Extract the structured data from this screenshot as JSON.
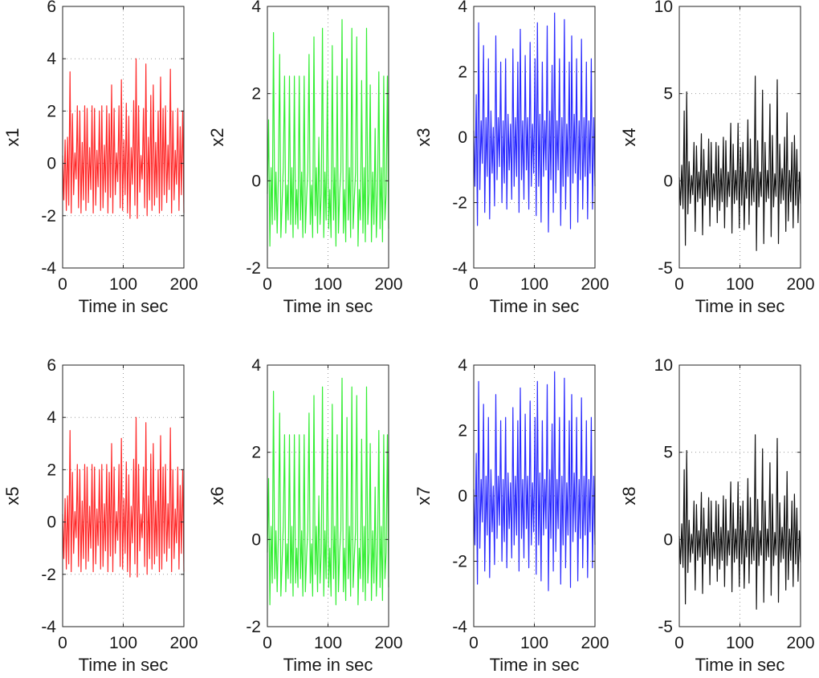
{
  "chart_data": [
    {
      "type": "line",
      "ylabel": "x1",
      "xlabel": "Time in sec",
      "color": "#ff2a2a",
      "xlim": [
        0,
        200
      ],
      "ylim": [
        -4,
        6
      ],
      "xticks": [
        0,
        100,
        200
      ],
      "xtick_labels": [
        "0",
        "100",
        "200"
      ],
      "yticks": [
        -4,
        -2,
        0,
        2,
        4,
        6
      ],
      "ytick_labels": [
        "-4",
        "-2",
        "0",
        "2",
        "4",
        "6"
      ],
      "grid": "dotted",
      "series": [
        {
          "name": "x1",
          "x_start": 0,
          "x_end": 200,
          "values": [
            0.3,
            -1.4,
            0.9,
            -1.8,
            1.0,
            -1.6,
            3.5,
            -1.9,
            1.9,
            -1.2,
            0.4,
            -0.6,
            2.2,
            -1.7,
            2.0,
            -1.9,
            0.8,
            -1.4,
            2.2,
            -1.8,
            2.1,
            -1.5,
            0.6,
            -1.0,
            2.2,
            -1.9,
            2.1,
            -1.6,
            0.5,
            -0.9,
            2.0,
            -1.8,
            2.2,
            -1.7,
            0.7,
            -1.1,
            2.2,
            -1.9,
            1.9,
            -1.3,
            3.0,
            -1.9,
            2.1,
            -1.2,
            0.4,
            -0.7,
            2.2,
            -1.7,
            3.2,
            -1.8,
            0.9,
            -1.2,
            2.3,
            -1.9,
            1.8,
            -2.1,
            0.6,
            -0.8,
            2.4,
            -1.6,
            4.0,
            -2.1,
            2.2,
            -1.1,
            0.3,
            -0.6,
            2.1,
            -1.7,
            3.8,
            -2.0,
            1.0,
            -1.4,
            2.6,
            -1.8,
            3.0,
            -1.6,
            0.8,
            -1.3,
            2.0,
            -1.9,
            3.3,
            -1.8,
            2.1,
            -1.2,
            2.2,
            -1.5,
            0.7,
            -1.0,
            3.6,
            -1.9,
            2.0,
            -1.4,
            0.5,
            -0.8,
            2.1,
            -1.8,
            1.4,
            -1.2,
            2.0,
            -1.9
          ]
        }
      ]
    },
    {
      "type": "line",
      "ylabel": "x2",
      "xlabel": "Time in sec",
      "color": "#33ee33",
      "xlim": [
        0,
        200
      ],
      "ylim": [
        -2,
        4
      ],
      "xticks": [
        0,
        100,
        200
      ],
      "xtick_labels": [
        "0",
        "100",
        "200"
      ],
      "yticks": [
        -2,
        0,
        2,
        4
      ],
      "ytick_labels": [
        "-2",
        "0",
        "2",
        "4"
      ],
      "grid": "dotted",
      "series": [
        {
          "name": "x2",
          "x_start": 0,
          "x_end": 200,
          "values": [
            -0.3,
            1.4,
            -1.5,
            0.3,
            -1.0,
            3.4,
            -0.9,
            0.2,
            -1.2,
            0.1,
            2.9,
            -1.3,
            -0.5,
            0.3,
            2.4,
            -1.2,
            -0.1,
            -0.9,
            2.4,
            -1.0,
            0.3,
            -1.3,
            2.4,
            -1.0,
            -0.2,
            -1.1,
            2.4,
            -0.9,
            0.2,
            -1.3,
            2.4,
            -1.2,
            -0.4,
            0.2,
            2.9,
            -1.0,
            -0.1,
            -1.3,
            3.3,
            -0.8,
            0.3,
            -1.2,
            1.0,
            -1.0,
            -0.3,
            3.5,
            -1.3,
            0.2,
            -0.9,
            2.3,
            -1.1,
            -0.2,
            -1.3,
            3.1,
            -0.9,
            0.3,
            -1.5,
            2.4,
            -1.2,
            -0.3,
            0.2,
            3.7,
            -1.2,
            -0.2,
            -1.4,
            2.8,
            -0.9,
            0.3,
            -1.3,
            3.5,
            -1.1,
            -0.4,
            0.2,
            3.3,
            -1.5,
            -0.2,
            -0.9,
            2.3,
            -1.2,
            0.3,
            -1.4,
            3.5,
            -1.0,
            -0.3,
            2.2,
            -1.4,
            0.2,
            -1.0,
            1.2,
            -1.3,
            -0.2,
            2.5,
            -1.1,
            0.3,
            -1.4,
            2.4,
            -0.9,
            -0.3,
            2.4,
            -1.1
          ]
        }
      ]
    },
    {
      "type": "line",
      "ylabel": "x3",
      "xlabel": "Time in sec",
      "color": "#2a2aff",
      "xlim": [
        0,
        200
      ],
      "ylim": [
        -4,
        4
      ],
      "xticks": [
        0,
        100,
        200
      ],
      "xtick_labels": [
        "0",
        "100",
        "200"
      ],
      "yticks": [
        -4,
        -2,
        0,
        2,
        4
      ],
      "ytick_labels": [
        "-4",
        "-2",
        "0",
        "2",
        "4"
      ],
      "grid": "dotted",
      "series": [
        {
          "name": "x3",
          "x_start": 0,
          "x_end": 200,
          "values": [
            0.2,
            -1.5,
            1.3,
            -2.7,
            3.5,
            -1.6,
            0.5,
            -0.8,
            2.8,
            -2.3,
            0.6,
            -1.2,
            2.4,
            -2.5,
            0.8,
            -1.1,
            0.3,
            -2.1,
            3.1,
            -1.3,
            0.6,
            -0.9,
            2.3,
            -2.0,
            0.5,
            -1.4,
            2.4,
            -2.2,
            0.7,
            -1.0,
            0.4,
            -1.9,
            2.7,
            -1.5,
            0.6,
            -1.2,
            2.3,
            -2.3,
            3.3,
            -1.3,
            0.5,
            -1.9,
            2.5,
            -1.0,
            0.6,
            -2.2,
            2.9,
            -1.5,
            0.4,
            -1.1,
            2.4,
            -2.4,
            3.5,
            -1.5,
            0.7,
            -2.6,
            2.3,
            -1.2,
            0.5,
            -1.0,
            3.4,
            -2.9,
            0.8,
            -1.3,
            2.2,
            -2.3,
            3.8,
            -1.7,
            0.5,
            -1.0,
            2.4,
            -2.7,
            0.6,
            -1.5,
            3.6,
            -2.2,
            0.4,
            -1.2,
            2.3,
            -2.8,
            3.1,
            -1.4,
            0.7,
            -1.1,
            2.4,
            -2.6,
            0.5,
            -1.3,
            3.0,
            -2.2,
            0.6,
            -1.2,
            2.3,
            -2.5,
            0.5,
            -1.1,
            2.4,
            -2.2,
            0.6,
            -1.5
          ]
        }
      ]
    },
    {
      "type": "line",
      "ylabel": "x4",
      "xlabel": "Time in sec",
      "color": "#111111",
      "xlim": [
        0,
        200
      ],
      "ylim": [
        -5,
        10
      ],
      "xticks": [
        0,
        100,
        200
      ],
      "xtick_labels": [
        "0",
        "100",
        "200"
      ],
      "yticks": [
        -5,
        0,
        5,
        10
      ],
      "ytick_labels": [
        "-5",
        "0",
        "5",
        "10"
      ],
      "grid": "dotted",
      "series": [
        {
          "name": "x4",
          "x_start": 0,
          "x_end": 200,
          "values": [
            0.2,
            -1.4,
            0.9,
            -1.6,
            4.0,
            -3.7,
            5.1,
            -1.9,
            1.1,
            -1.3,
            0.3,
            -0.8,
            2.2,
            -2.9,
            2.0,
            -1.2,
            0.5,
            -1.0,
            2.7,
            -3.1,
            1.8,
            -1.4,
            0.6,
            -0.9,
            2.4,
            -2.6,
            2.2,
            -1.5,
            0.4,
            -1.1,
            2.2,
            -2.4,
            2.0,
            -1.7,
            0.7,
            -1.2,
            2.5,
            -2.7,
            2.3,
            -1.5,
            0.5,
            -0.9,
            3.3,
            -3.0,
            2.1,
            -1.3,
            0.6,
            -1.1,
            3.3,
            -2.7,
            1.9,
            -1.4,
            2.2,
            -2.8,
            0.5,
            -1.0,
            3.5,
            -2.5,
            2.4,
            -1.4,
            0.7,
            -1.2,
            6.0,
            -4.0,
            2.3,
            -1.5,
            0.5,
            -0.9,
            5.2,
            -3.6,
            2.2,
            -1.2,
            0.6,
            -1.0,
            4.4,
            -3.2,
            2.6,
            -1.5,
            0.4,
            -0.9,
            5.8,
            -3.6,
            2.1,
            -1.3,
            0.7,
            -1.1,
            2.5,
            -2.9,
            3.9,
            -2.3,
            0.6,
            -1.2,
            2.2,
            -2.7,
            2.6,
            -1.4,
            1.8,
            -2.4,
            0.5,
            -1.3
          ]
        }
      ]
    },
    {
      "type": "line",
      "ylabel": "x5",
      "xlabel": "Time in sec",
      "color": "#ff2a2a",
      "xlim": [
        0,
        200
      ],
      "ylim": [
        -4,
        6
      ],
      "xticks": [
        0,
        100,
        200
      ],
      "xtick_labels": [
        "0",
        "100",
        "200"
      ],
      "yticks": [
        -4,
        -2,
        0,
        2,
        4,
        6
      ],
      "ytick_labels": [
        "-4",
        "-2",
        "0",
        "2",
        "4",
        "6"
      ],
      "grid": "dotted",
      "series": [
        {
          "name": "x5",
          "x_start": 0,
          "x_end": 200,
          "values": [
            0.3,
            -1.4,
            0.9,
            -1.8,
            1.0,
            -1.6,
            3.5,
            -1.9,
            1.9,
            -1.2,
            0.4,
            -0.6,
            2.2,
            -1.7,
            2.0,
            -1.9,
            0.8,
            -1.4,
            2.2,
            -1.8,
            2.1,
            -1.5,
            0.6,
            -1.0,
            2.2,
            -1.9,
            2.1,
            -1.6,
            0.5,
            -0.9,
            2.0,
            -1.8,
            2.2,
            -1.7,
            0.7,
            -1.1,
            2.2,
            -1.9,
            1.9,
            -1.3,
            3.0,
            -1.9,
            2.1,
            -1.2,
            0.4,
            -0.7,
            2.2,
            -1.7,
            3.2,
            -1.8,
            0.9,
            -1.2,
            2.3,
            -1.9,
            1.8,
            -2.1,
            0.6,
            -0.8,
            2.4,
            -1.6,
            4.0,
            -2.1,
            2.2,
            -1.1,
            0.3,
            -0.6,
            2.1,
            -1.7,
            3.8,
            -2.0,
            1.0,
            -1.4,
            2.6,
            -1.8,
            3.0,
            -1.6,
            0.8,
            -1.3,
            2.0,
            -1.9,
            3.3,
            -1.8,
            2.1,
            -1.2,
            2.2,
            -1.5,
            0.7,
            -1.0,
            3.6,
            -1.9,
            2.0,
            -1.4,
            0.5,
            -0.8,
            2.1,
            -1.8,
            1.4,
            -1.2,
            2.0,
            -1.9
          ]
        }
      ]
    },
    {
      "type": "line",
      "ylabel": "x6",
      "xlabel": "Time in sec",
      "color": "#33ee33",
      "xlim": [
        0,
        200
      ],
      "ylim": [
        -2,
        4
      ],
      "xticks": [
        0,
        100,
        200
      ],
      "xtick_labels": [
        "0",
        "100",
        "200"
      ],
      "yticks": [
        -2,
        0,
        2,
        4
      ],
      "ytick_labels": [
        "-2",
        "0",
        "2",
        "4"
      ],
      "grid": "dotted",
      "series": [
        {
          "name": "x6",
          "x_start": 0,
          "x_end": 200,
          "values": [
            -0.3,
            1.4,
            -1.5,
            0.3,
            -1.0,
            3.4,
            -0.9,
            0.2,
            -1.2,
            0.1,
            2.9,
            -1.3,
            -0.5,
            0.3,
            2.4,
            -1.2,
            -0.1,
            -0.9,
            2.4,
            -1.0,
            0.3,
            -1.3,
            2.4,
            -1.0,
            -0.2,
            -1.1,
            2.4,
            -0.9,
            0.2,
            -1.3,
            2.4,
            -1.2,
            -0.4,
            0.2,
            2.9,
            -1.0,
            -0.1,
            -1.3,
            3.3,
            -0.8,
            0.3,
            -1.2,
            1.0,
            -1.0,
            -0.3,
            3.5,
            -1.3,
            0.2,
            -0.9,
            2.3,
            -1.1,
            -0.2,
            -1.3,
            3.1,
            -0.9,
            0.3,
            -1.5,
            2.4,
            -1.2,
            -0.3,
            0.2,
            3.7,
            -1.2,
            -0.2,
            -1.4,
            2.8,
            -0.9,
            0.3,
            -1.3,
            3.5,
            -1.1,
            -0.4,
            0.2,
            3.3,
            -1.5,
            -0.2,
            -0.9,
            2.3,
            -1.2,
            0.3,
            -1.4,
            3.5,
            -1.0,
            -0.3,
            2.2,
            -1.4,
            0.2,
            -1.0,
            1.2,
            -1.3,
            -0.2,
            2.5,
            -1.1,
            0.3,
            -1.4,
            2.4,
            -0.9,
            -0.3,
            2.4,
            -1.1
          ]
        }
      ]
    },
    {
      "type": "line",
      "ylabel": "x7",
      "xlabel": "Time in sec",
      "color": "#2a2aff",
      "xlim": [
        0,
        200
      ],
      "ylim": [
        -4,
        4
      ],
      "xticks": [
        0,
        100,
        200
      ],
      "xtick_labels": [
        "0",
        "100",
        "200"
      ],
      "yticks": [
        -4,
        -2,
        0,
        2,
        4
      ],
      "ytick_labels": [
        "-4",
        "-2",
        "0",
        "2",
        "4"
      ],
      "grid": "dotted",
      "series": [
        {
          "name": "x7",
          "x_start": 0,
          "x_end": 200,
          "values": [
            0.2,
            -1.5,
            1.3,
            -2.7,
            3.5,
            -1.6,
            0.5,
            -0.8,
            2.8,
            -2.3,
            0.6,
            -1.2,
            2.4,
            -2.5,
            0.8,
            -1.1,
            0.3,
            -2.1,
            3.1,
            -1.3,
            0.6,
            -0.9,
            2.3,
            -2.0,
            0.5,
            -1.4,
            2.4,
            -2.2,
            0.7,
            -1.0,
            0.4,
            -1.9,
            2.7,
            -1.5,
            0.6,
            -1.2,
            2.3,
            -2.3,
            3.3,
            -1.3,
            0.5,
            -1.9,
            2.5,
            -1.0,
            0.6,
            -2.2,
            2.9,
            -1.5,
            0.4,
            -1.1,
            2.4,
            -2.4,
            3.5,
            -1.5,
            0.7,
            -2.6,
            2.3,
            -1.2,
            0.5,
            -1.0,
            3.4,
            -2.9,
            0.8,
            -1.3,
            2.2,
            -2.3,
            3.8,
            -1.7,
            0.5,
            -1.0,
            2.4,
            -2.7,
            0.6,
            -1.5,
            3.6,
            -2.2,
            0.4,
            -1.2,
            2.3,
            -2.8,
            3.1,
            -1.4,
            0.7,
            -1.1,
            2.4,
            -2.6,
            0.5,
            -1.3,
            3.0,
            -2.2,
            0.6,
            -1.2,
            2.3,
            -2.5,
            0.5,
            -1.1,
            2.4,
            -2.2,
            0.6,
            -1.5
          ]
        }
      ]
    },
    {
      "type": "line",
      "ylabel": "x8",
      "xlabel": "Time in sec",
      "color": "#111111",
      "xlim": [
        0,
        200
      ],
      "ylim": [
        -5,
        10
      ],
      "xticks": [
        0,
        100,
        200
      ],
      "xtick_labels": [
        "0",
        "100",
        "200"
      ],
      "yticks": [
        -5,
        0,
        5,
        10
      ],
      "ytick_labels": [
        "-5",
        "0",
        "5",
        "10"
      ],
      "grid": "dotted",
      "series": [
        {
          "name": "x8",
          "x_start": 0,
          "x_end": 200,
          "values": [
            0.2,
            -1.4,
            0.9,
            -1.6,
            4.0,
            -3.7,
            5.1,
            -1.9,
            1.1,
            -1.3,
            0.3,
            -0.8,
            2.2,
            -2.9,
            2.0,
            -1.2,
            0.5,
            -1.0,
            2.7,
            -3.1,
            1.8,
            -1.4,
            0.6,
            -0.9,
            2.4,
            -2.6,
            2.2,
            -1.5,
            0.4,
            -1.1,
            2.2,
            -2.4,
            2.0,
            -1.7,
            0.7,
            -1.2,
            2.5,
            -2.7,
            2.3,
            -1.5,
            0.5,
            -0.9,
            3.3,
            -3.0,
            2.1,
            -1.3,
            0.6,
            -1.1,
            3.3,
            -2.7,
            1.9,
            -1.4,
            2.2,
            -2.8,
            0.5,
            -1.0,
            3.5,
            -2.5,
            2.4,
            -1.4,
            0.7,
            -1.2,
            6.0,
            -4.0,
            2.3,
            -1.5,
            0.5,
            -0.9,
            5.2,
            -3.6,
            2.2,
            -1.2,
            0.6,
            -1.0,
            4.4,
            -3.2,
            2.6,
            -1.5,
            0.4,
            -0.9,
            5.8,
            -3.6,
            2.1,
            -1.3,
            0.7,
            -1.1,
            2.5,
            -2.9,
            3.9,
            -2.3,
            0.6,
            -1.2,
            2.2,
            -2.7,
            2.6,
            -1.4,
            1.8,
            -2.4,
            0.5,
            -1.3
          ]
        }
      ]
    }
  ]
}
